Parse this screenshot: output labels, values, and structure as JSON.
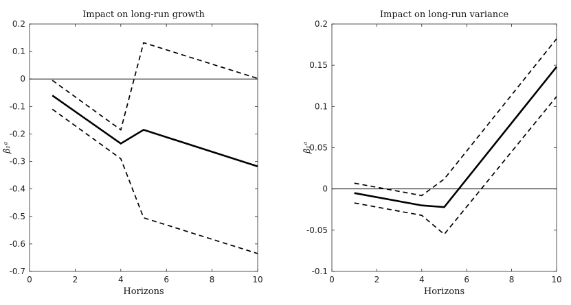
{
  "chart_data": [
    {
      "type": "line",
      "title": "Impact on long-run growth",
      "xlabel": "Horizons",
      "ylabel": "β̃₁ᵍ",
      "xlim": [
        0,
        10
      ],
      "ylim": [
        -0.7,
        0.2
      ],
      "xticks": [
        0,
        2,
        4,
        6,
        8,
        10
      ],
      "xtick_labels": [
        "0",
        "2",
        "4",
        "6",
        "8",
        "10"
      ],
      "yticks": [
        0.2,
        0.1,
        0,
        -0.1,
        -0.2,
        -0.3,
        -0.4,
        -0.5,
        -0.6,
        -0.7
      ],
      "ytick_labels": [
        "0.2",
        "0.1",
        "0",
        "-0.1",
        "-0.2",
        "-0.3",
        "-0.4",
        "-0.5",
        "-0.6",
        "-0.7"
      ],
      "zero_line": 0,
      "series": [
        {
          "name": "estimate",
          "style": "solid",
          "x": [
            1,
            4,
            5,
            10
          ],
          "values": [
            -0.06,
            -0.235,
            -0.185,
            -0.318
          ]
        },
        {
          "name": "upper band",
          "style": "dashed",
          "x": [
            1,
            4,
            5,
            10
          ],
          "values": [
            -0.005,
            -0.185,
            0.132,
            0.002
          ]
        },
        {
          "name": "lower band",
          "style": "dashed",
          "x": [
            1,
            4,
            5,
            10
          ],
          "values": [
            -0.11,
            -0.29,
            -0.505,
            -0.635
          ]
        }
      ]
    },
    {
      "type": "line",
      "title": "Impact on long-run variance",
      "xlabel": "Horizons",
      "ylabel": "β̃₁ᵈ",
      "xlim": [
        0,
        10
      ],
      "ylim": [
        -0.1,
        0.2
      ],
      "xticks": [
        0,
        2,
        4,
        6,
        8,
        10
      ],
      "xtick_labels": [
        "0",
        "2",
        "4",
        "6",
        "8",
        "10"
      ],
      "yticks": [
        0.2,
        0.15,
        0.1,
        0.05,
        0,
        -0.05,
        -0.1
      ],
      "ytick_labels": [
        "0.2",
        "0.15",
        "0.1",
        "0.05",
        "0",
        "-0.05",
        "-0.1"
      ],
      "zero_line": 0,
      "series": [
        {
          "name": "estimate",
          "style": "solid",
          "x": [
            1,
            4,
            5,
            10
          ],
          "values": [
            -0.005,
            -0.02,
            -0.022,
            0.148
          ]
        },
        {
          "name": "upper band",
          "style": "dashed",
          "x": [
            1,
            4,
            5,
            10
          ],
          "values": [
            0.007,
            -0.008,
            0.012,
            0.182
          ]
        },
        {
          "name": "lower band",
          "style": "dashed",
          "x": [
            1,
            4,
            5,
            10
          ],
          "values": [
            -0.017,
            -0.032,
            -0.055,
            0.112
          ]
        }
      ]
    }
  ]
}
